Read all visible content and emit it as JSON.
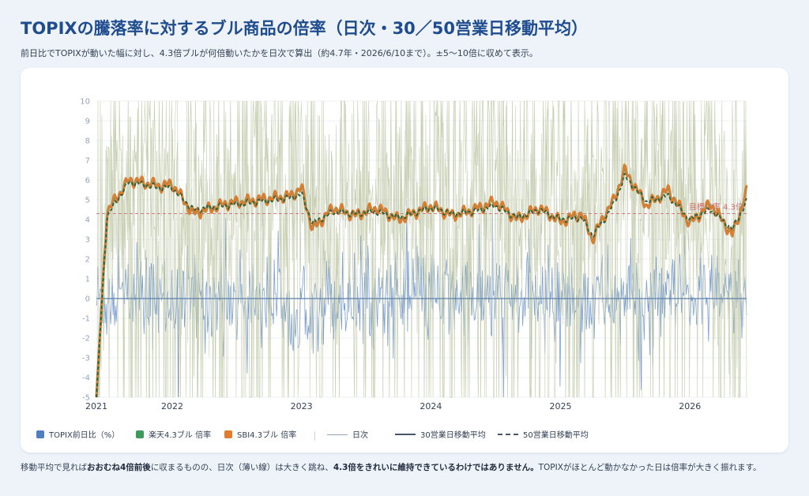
{
  "title": "TOPIXの騰落率に対するブル商品の倍率（日次・30／50営業日移動平均）",
  "subtitle": "前日比でTOPIXが動いた幅に対し、4.3倍ブルが何倍動いたかを日次で算出（約4.7年・2026/6/10まで）。±5〜10倍に収めて表示。",
  "legend": {
    "topix": "TOPIX前日比（%）",
    "rakuten": "楽天4.3ブル 倍率",
    "sbi": "SBI4.3ブル 倍率",
    "daily": "日次",
    "ma30": "30営業日移動平均",
    "ma50": "50営業日移動平均"
  },
  "target_label": "目標倍率 4.3倍",
  "footnote": {
    "p1": "移動平均で見れば",
    "b1": "おおむね4倍前後",
    "p2": "に収まるものの、日次（薄い線）は大きく跳ね、",
    "b2": "4.3倍をきれいに維持できているわけではありません。",
    "p3": "TOPIXがほとんど動かなかった日は倍率が大きく振れます。"
  },
  "colors": {
    "title": "#1e4c8f",
    "topix": "#4f7fc0",
    "rakuten": "#3f9a5a",
    "sbi": "#e07b2f",
    "daily_ratio": "#b9c39f",
    "ma50": "#2e5e3a",
    "target": "#d06a6a"
  },
  "chart_data": {
    "type": "line",
    "x_range": [
      "2021-06",
      "2026-06-10"
    ],
    "x_ticks": [
      "2021",
      "2022",
      "2023",
      "2024",
      "2025",
      "2026"
    ],
    "y_ticks": [
      10,
      9,
      8,
      7,
      6,
      5,
      4,
      3,
      2,
      1,
      0,
      -1,
      -2,
      -3,
      -4,
      -5
    ],
    "ylim": [
      -5,
      10
    ],
    "target_ratio": 4.3,
    "ma_keypoints": {
      "dates": [
        "2021-06",
        "2021-07",
        "2021-09",
        "2021-12",
        "2022-01",
        "2022-03",
        "2022-06",
        "2022-09",
        "2022-12",
        "2023-01",
        "2023-02",
        "2023-04",
        "2023-06",
        "2023-08",
        "2023-10",
        "2024-01",
        "2024-03",
        "2024-05",
        "2024-07",
        "2024-09",
        "2024-11",
        "2025-01",
        "2025-03",
        "2025-04",
        "2025-05",
        "2025-06",
        "2025-07",
        "2025-09",
        "2025-11",
        "2026-01",
        "2026-03",
        "2026-05",
        "2026-06-10"
      ],
      "rakuten_ma30": [
        -5,
        4.4,
        6.0,
        5.7,
        5.8,
        4.3,
        4.8,
        5.0,
        5.2,
        5.6,
        3.5,
        4.6,
        4.2,
        4.6,
        4.0,
        4.7,
        4.2,
        4.5,
        4.9,
        4.0,
        4.6,
        3.9,
        4.3,
        3.0,
        4.1,
        5.0,
        6.5,
        4.7,
        5.5,
        3.8,
        4.8,
        3.2,
        5.4
      ],
      "sbi_ma30": [
        -5,
        4.4,
        6.0,
        5.7,
        5.8,
        4.3,
        4.8,
        5.0,
        5.2,
        5.6,
        3.5,
        4.6,
        4.2,
        4.6,
        4.0,
        4.7,
        4.2,
        4.5,
        4.9,
        4.0,
        4.6,
        3.9,
        4.3,
        3.0,
        4.1,
        5.0,
        6.5,
        4.7,
        5.5,
        3.8,
        4.8,
        3.2,
        5.4
      ],
      "ma50": [
        -5,
        4.2,
        5.9,
        5.6,
        5.6,
        4.5,
        4.7,
        4.9,
        5.1,
        5.3,
        3.8,
        4.4,
        4.3,
        4.4,
        4.1,
        4.6,
        4.3,
        4.4,
        4.7,
        4.1,
        4.5,
        4.0,
        4.1,
        3.2,
        3.9,
        4.8,
        6.2,
        4.9,
        5.2,
        4.0,
        4.5,
        3.5,
        4.9
      ]
    },
    "topix_daily_pct_range": [
      -5,
      5
    ],
    "ratio_daily_range": [
      -5,
      10
    ]
  }
}
